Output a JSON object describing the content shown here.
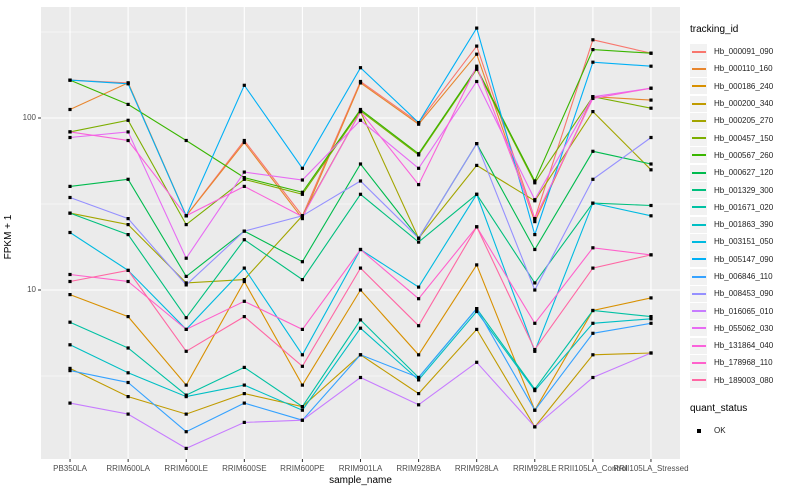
{
  "chart_data": {
    "type": "line",
    "title": "",
    "xlabel": "sample_name",
    "ylabel": "FPKM + 1",
    "yscale": "log10",
    "ylim": [
      1,
      450
    ],
    "grid": true,
    "legend_position": "right",
    "yticks": [
      {
        "label": "100",
        "value": 100
      },
      {
        "label": "10",
        "value": 10
      }
    ],
    "categories": [
      "PB350LA",
      "RRIM600LA",
      "RRIM600LE",
      "RRIM600SE",
      "RRIM600PE",
      "RRIM901LA",
      "RRIM928BA",
      "RRIM928LA",
      "RRIM928LE",
      "RRII105LA_Control",
      "RRII105LA_Stressed"
    ],
    "series": [
      {
        "name": "Hb_000091_090",
        "color": "#F8766D",
        "values": [
          166,
          160,
          27,
          74,
          27,
          163,
          94,
          262,
          26,
          285,
          238
        ]
      },
      {
        "name": "Hb_000110_160",
        "color": "#E8862E",
        "values": [
          112,
          160,
          27,
          72,
          26,
          160,
          92,
          235,
          25,
          133,
          127
        ]
      },
      {
        "name": "Hb_000186_240",
        "color": "#D89000",
        "values": [
          9.4,
          7.0,
          2.8,
          11.2,
          2.8,
          10,
          4.2,
          14,
          2.0,
          7.6,
          9
        ]
      },
      {
        "name": "Hb_000200_340",
        "color": "#C09B00",
        "values": [
          3.5,
          2.4,
          1.9,
          2.5,
          2.1,
          4.2,
          2.5,
          5.9,
          1.6,
          4.2,
          4.3
        ]
      },
      {
        "name": "Hb_000205_270",
        "color": "#A3A500",
        "values": [
          28,
          24,
          11,
          11.5,
          27,
          109,
          20,
          53,
          33,
          109,
          50
        ]
      },
      {
        "name": "Hb_000457_150",
        "color": "#7CAE00",
        "values": [
          83,
          97,
          24,
          44,
          36,
          110,
          61,
          192,
          42,
          133,
          114
        ]
      },
      {
        "name": "Hb_000567_260",
        "color": "#39B600",
        "values": [
          166,
          120,
          74,
          45,
          37,
          112,
          62,
          195,
          43,
          250,
          238
        ]
      },
      {
        "name": "Hb_000627_120",
        "color": "#00BB4E",
        "values": [
          40,
          44,
          12,
          22,
          14.6,
          54,
          20,
          71,
          17.2,
          64,
          54
        ]
      },
      {
        "name": "Hb_001329_300",
        "color": "#00BF7D",
        "values": [
          28,
          21,
          6.9,
          19.6,
          11.5,
          36,
          19,
          36,
          11,
          32,
          31
        ]
      },
      {
        "name": "Hb_001671_020",
        "color": "#00C1A3",
        "values": [
          6.5,
          4.6,
          2.45,
          3.55,
          2.1,
          6.7,
          3.1,
          7.8,
          2.65,
          7.6,
          7.0
        ]
      },
      {
        "name": "Hb_001863_390",
        "color": "#00BFC4",
        "values": [
          4.8,
          3.3,
          2.4,
          2.8,
          2.0,
          6.0,
          3.0,
          7.5,
          2.6,
          6.4,
          6.8
        ]
      },
      {
        "name": "Hb_003151_050",
        "color": "#00BAE0",
        "values": [
          21.6,
          13,
          5.9,
          13.4,
          4.2,
          17.2,
          10.4,
          36,
          4.4,
          32,
          27
        ]
      },
      {
        "name": "Hb_005147_090",
        "color": "#00B0F6",
        "values": [
          166,
          158,
          27,
          155,
          51,
          196,
          94,
          333,
          21,
          211,
          200
        ]
      },
      {
        "name": "Hb_006846_110",
        "color": "#35A2FF",
        "values": [
          3.4,
          2.9,
          1.5,
          2.2,
          1.75,
          4.2,
          3.1,
          7.8,
          2.0,
          5.6,
          6.4
        ]
      },
      {
        "name": "Hb_008453_090",
        "color": "#9590FF",
        "values": [
          34.5,
          26,
          10.7,
          22,
          27,
          43,
          20,
          71,
          10,
          44,
          77
        ]
      },
      {
        "name": "Hb_016065_010",
        "color": "#C77CFF",
        "values": [
          2.2,
          1.9,
          1.2,
          1.7,
          1.75,
          3.1,
          2.15,
          3.8,
          1.6,
          3.1,
          4.3
        ]
      },
      {
        "name": "Hb_055062_030",
        "color": "#E76BF3",
        "values": [
          77,
          83,
          15.3,
          48.5,
          43.6,
          97,
          51,
          163,
          33.5,
          133,
          149
        ]
      },
      {
        "name": "Hb_131864_040",
        "color": "#FA62DB",
        "values": [
          83,
          74,
          27,
          40,
          26.7,
          109,
          41,
          200,
          26,
          130,
          149
        ]
      },
      {
        "name": "Hb_178968_110",
        "color": "#FF61CC",
        "values": [
          12.3,
          11.2,
          5.9,
          8.6,
          5.9,
          17.2,
          8.9,
          23.3,
          6.4,
          17.6,
          16
        ]
      },
      {
        "name": "Hb_189003_080",
        "color": "#FF67A4",
        "values": [
          11.2,
          13,
          4.4,
          7.0,
          3.6,
          13.4,
          6.2,
          23.3,
          4.5,
          13.4,
          16
        ]
      }
    ],
    "legend": {
      "title": "tracking_id"
    },
    "quant_legend": {
      "title": "quant_status",
      "items": [
        {
          "label": "OK",
          "marker": "black-square"
        }
      ]
    },
    "style": {
      "panel_bg": "#EBEBEB",
      "grid_color": "#FFFFFF",
      "marker_color": "#000000",
      "tick_color": "#333333",
      "legend_key_bg": "#F2F2F2"
    }
  }
}
